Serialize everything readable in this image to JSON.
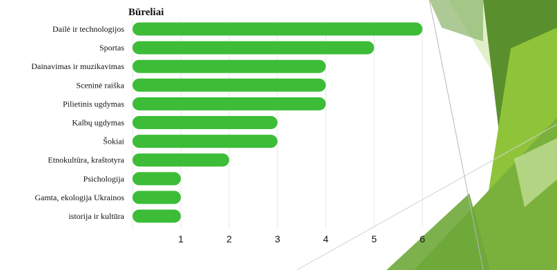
{
  "colors": {
    "bar": "#3dbd37",
    "grid": "#e6e6e6",
    "accent_green": "#7fb42e"
  },
  "chart_data": {
    "type": "bar",
    "orientation": "horizontal",
    "title": "Būreliai",
    "categories": [
      "Dailė ir technologijos",
      "Sportas",
      "Dainavimas ir muzikavimas",
      "Sceninė raiška",
      "Pilietinis ugdymas",
      "Kalbų ugdymas",
      "Šokiai",
      "Etnokultūra,  kraštotyra",
      "Psichologija",
      "Gamta, ekologija  Ukrainos",
      "istorija  ir kultūra"
    ],
    "values": [
      6,
      5,
      4,
      4,
      4,
      3,
      3,
      2,
      1,
      1,
      1
    ],
    "xlim": [
      0,
      6
    ],
    "xticks": [
      "1",
      "2",
      "3",
      "4",
      "5",
      "6"
    ],
    "grid": true,
    "legend": "none"
  }
}
